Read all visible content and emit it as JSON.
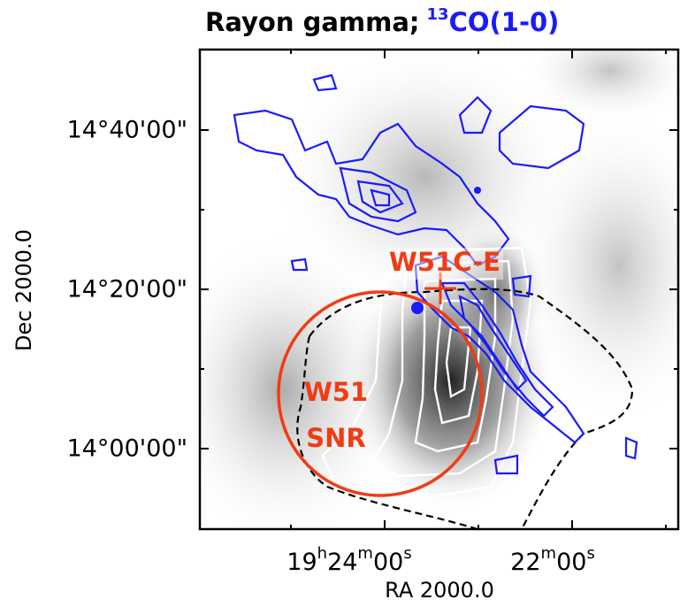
{
  "title": {
    "text": "Rayon gamma;",
    "co_superscript": "13",
    "co_text": "CO(1-0)"
  },
  "y_axis": {
    "label": "Dec  2000.0",
    "ticks": [
      "14°40'00\"",
      "14°20'00\"",
      "14°00'00\""
    ]
  },
  "x_axis": {
    "label": "RA  2000.0",
    "ticks": [
      [
        "19",
        "h",
        "24",
        "m",
        "00",
        "s"
      ],
      [
        "22",
        "m",
        "00",
        "s"
      ]
    ]
  },
  "annotations": {
    "source": "W51C-E",
    "snr_line1": "W51",
    "snr_line2": "SNR"
  }
}
